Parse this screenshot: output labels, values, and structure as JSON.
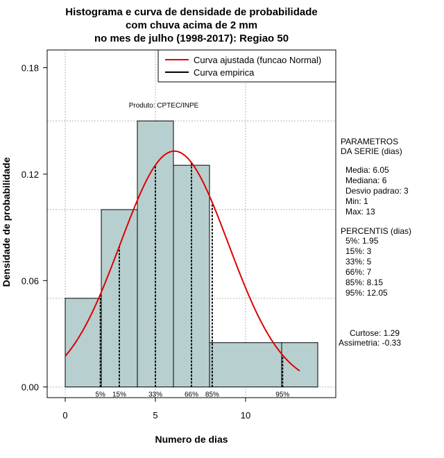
{
  "chart_data": {
    "type": "bar",
    "title": [
      "Histograma e curva de densidade de probabilidade",
      "com chuva acima de 2 mm",
      "no mes de julho (1998-2017): Regiao 50"
    ],
    "xlabel": "Numero de dias",
    "ylabel": "Densidade de probabilidade",
    "xlim": [
      -1,
      15
    ],
    "ylim": [
      -0.006,
      0.19
    ],
    "x_ticks": [
      0,
      5,
      10
    ],
    "x_tick_labels": [
      "0",
      "5",
      "10"
    ],
    "y_ticks": [
      0,
      0.06,
      0.12,
      0.18
    ],
    "y_tick_labels": [
      "0.00",
      "0.06",
      "0.12",
      "0.18"
    ],
    "grid": true,
    "grid_color": "#b3b3b3",
    "bar_fill": "#b7cfcf",
    "bins": [
      {
        "start": 0,
        "end": 2,
        "density": 0.05
      },
      {
        "start": 2,
        "end": 4,
        "density": 0.1
      },
      {
        "start": 4,
        "end": 6,
        "density": 0.15
      },
      {
        "start": 6,
        "end": 8,
        "density": 0.125
      },
      {
        "start": 8,
        "end": 12,
        "density": 0.025
      },
      {
        "start": 12,
        "end": 14,
        "density": 0.025
      }
    ],
    "normal_curve": {
      "name": "Curva ajustada (funcao Normal)",
      "color": "#dd0000",
      "mean": 6.05,
      "sd": 3,
      "x_range": [
        0,
        13
      ]
    },
    "empirical_name": "Curva empirica",
    "empirical_color": "#000000",
    "percentile_lines": [
      {
        "label": "5%",
        "x": 1.95
      },
      {
        "label": "15%",
        "x": 3
      },
      {
        "label": "33%",
        "x": 5
      },
      {
        "label": "66%",
        "x": 7
      },
      {
        "label": "85%",
        "x": 8.15
      },
      {
        "label": "95%",
        "x": 12.05
      }
    ],
    "source_label": "Produto: CPTEC/INPE",
    "legend_position": "top-right",
    "side_panel": {
      "params_title": [
        "PARAMETROS",
        "DA SERIE (dias)"
      ],
      "params": [
        "Media: 6.05",
        "Mediana: 6",
        "Desvio padrao: 3",
        "Min: 1",
        "Max: 13"
      ],
      "percentis_title": "PERCENTIS (dias)",
      "percentis": [
        "5%: 1.95",
        "15%: 3",
        "33%: 5",
        "66%: 7",
        "85%: 8.15",
        "95%: 12.05"
      ],
      "curtose": "Curtose: 1.29",
      "assimetria": "Assimetria: -0.33"
    }
  }
}
